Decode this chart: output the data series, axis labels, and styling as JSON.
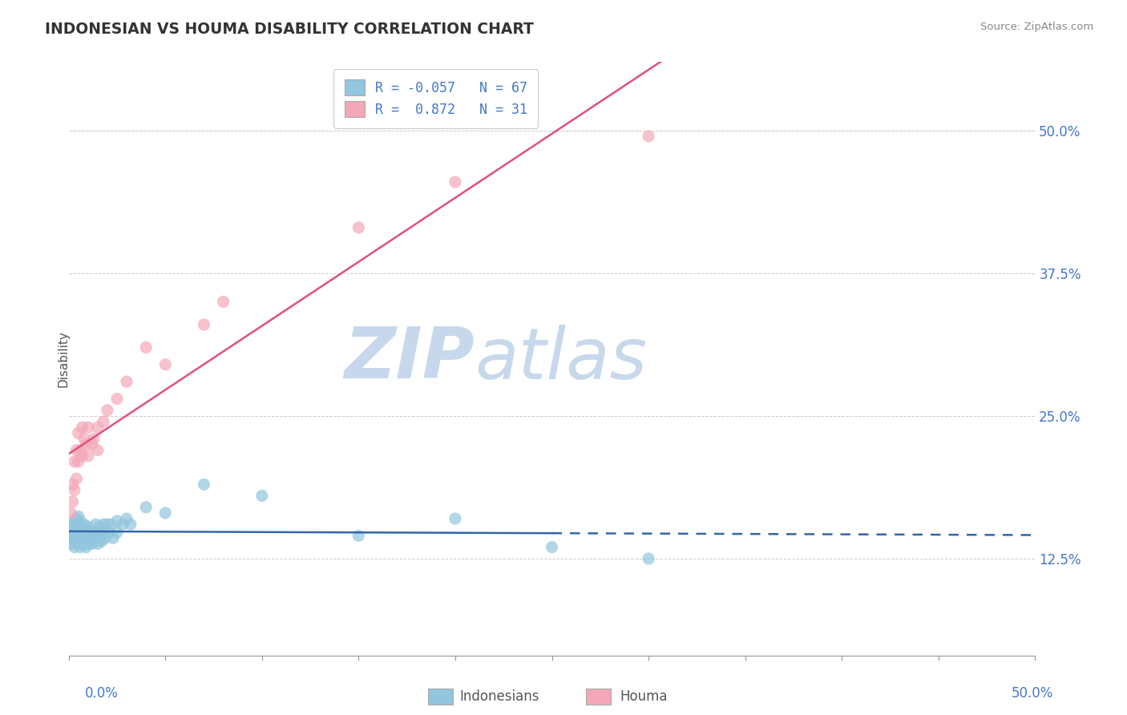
{
  "title": "INDONESIAN VS HOUMA DISABILITY CORRELATION CHART",
  "source": "Source: ZipAtlas.com",
  "ylabel": "Disability",
  "x_range": [
    0.0,
    0.5
  ],
  "y_range": [
    0.04,
    0.56
  ],
  "indonesian_color": "#92c5de",
  "houma_color": "#f4a7b9",
  "indonesian_line_color": "#3366aa",
  "houma_line_color": "#e05080",
  "grid_color": "#cccccc",
  "watermark_text": "ZIPatlas",
  "watermark_color": "#dce8f5",
  "y_tick_positions": [
    0.125,
    0.25,
    0.375,
    0.5
  ],
  "y_tick_labels": [
    "12.5%",
    "25.0%",
    "37.5%",
    "50.0%"
  ],
  "indonesian_points": [
    [
      0.001,
      0.145
    ],
    [
      0.001,
      0.138
    ],
    [
      0.001,
      0.152
    ],
    [
      0.002,
      0.14
    ],
    [
      0.002,
      0.148
    ],
    [
      0.002,
      0.155
    ],
    [
      0.003,
      0.135
    ],
    [
      0.003,
      0.142
    ],
    [
      0.003,
      0.15
    ],
    [
      0.003,
      0.158
    ],
    [
      0.004,
      0.138
    ],
    [
      0.004,
      0.145
    ],
    [
      0.004,
      0.153
    ],
    [
      0.004,
      0.16
    ],
    [
      0.005,
      0.14
    ],
    [
      0.005,
      0.148
    ],
    [
      0.005,
      0.155
    ],
    [
      0.005,
      0.162
    ],
    [
      0.006,
      0.135
    ],
    [
      0.006,
      0.143
    ],
    [
      0.006,
      0.15
    ],
    [
      0.006,
      0.158
    ],
    [
      0.007,
      0.138
    ],
    [
      0.007,
      0.145
    ],
    [
      0.007,
      0.153
    ],
    [
      0.008,
      0.14
    ],
    [
      0.008,
      0.148
    ],
    [
      0.008,
      0.155
    ],
    [
      0.009,
      0.135
    ],
    [
      0.009,
      0.143
    ],
    [
      0.009,
      0.15
    ],
    [
      0.01,
      0.138
    ],
    [
      0.01,
      0.145
    ],
    [
      0.01,
      0.153
    ],
    [
      0.011,
      0.14
    ],
    [
      0.011,
      0.148
    ],
    [
      0.012,
      0.138
    ],
    [
      0.012,
      0.145
    ],
    [
      0.013,
      0.14
    ],
    [
      0.013,
      0.148
    ],
    [
      0.014,
      0.155
    ],
    [
      0.014,
      0.143
    ],
    [
      0.015,
      0.138
    ],
    [
      0.015,
      0.148
    ],
    [
      0.016,
      0.153
    ],
    [
      0.016,
      0.143
    ],
    [
      0.017,
      0.14
    ],
    [
      0.018,
      0.148
    ],
    [
      0.018,
      0.155
    ],
    [
      0.019,
      0.143
    ],
    [
      0.02,
      0.155
    ],
    [
      0.021,
      0.148
    ],
    [
      0.022,
      0.155
    ],
    [
      0.023,
      0.143
    ],
    [
      0.025,
      0.158
    ],
    [
      0.025,
      0.148
    ],
    [
      0.028,
      0.155
    ],
    [
      0.03,
      0.16
    ],
    [
      0.032,
      0.155
    ],
    [
      0.04,
      0.17
    ],
    [
      0.05,
      0.165
    ],
    [
      0.07,
      0.19
    ],
    [
      0.1,
      0.18
    ],
    [
      0.15,
      0.145
    ],
    [
      0.2,
      0.16
    ],
    [
      0.25,
      0.135
    ],
    [
      0.3,
      0.125
    ]
  ],
  "houma_points": [
    [
      0.001,
      0.165
    ],
    [
      0.002,
      0.175
    ],
    [
      0.002,
      0.19
    ],
    [
      0.003,
      0.185
    ],
    [
      0.003,
      0.21
    ],
    [
      0.004,
      0.195
    ],
    [
      0.004,
      0.22
    ],
    [
      0.005,
      0.21
    ],
    [
      0.005,
      0.235
    ],
    [
      0.006,
      0.22
    ],
    [
      0.007,
      0.215
    ],
    [
      0.007,
      0.24
    ],
    [
      0.008,
      0.23
    ],
    [
      0.009,
      0.225
    ],
    [
      0.01,
      0.24
    ],
    [
      0.01,
      0.215
    ],
    [
      0.012,
      0.225
    ],
    [
      0.013,
      0.23
    ],
    [
      0.015,
      0.22
    ],
    [
      0.015,
      0.24
    ],
    [
      0.018,
      0.245
    ],
    [
      0.02,
      0.255
    ],
    [
      0.025,
      0.265
    ],
    [
      0.03,
      0.28
    ],
    [
      0.04,
      0.31
    ],
    [
      0.05,
      0.295
    ],
    [
      0.07,
      0.33
    ],
    [
      0.08,
      0.35
    ],
    [
      0.15,
      0.415
    ],
    [
      0.2,
      0.455
    ],
    [
      0.3,
      0.495
    ]
  ],
  "legend_line1": "R = -0.057   N = 67",
  "legend_line2": "R =  0.872   N = 31"
}
